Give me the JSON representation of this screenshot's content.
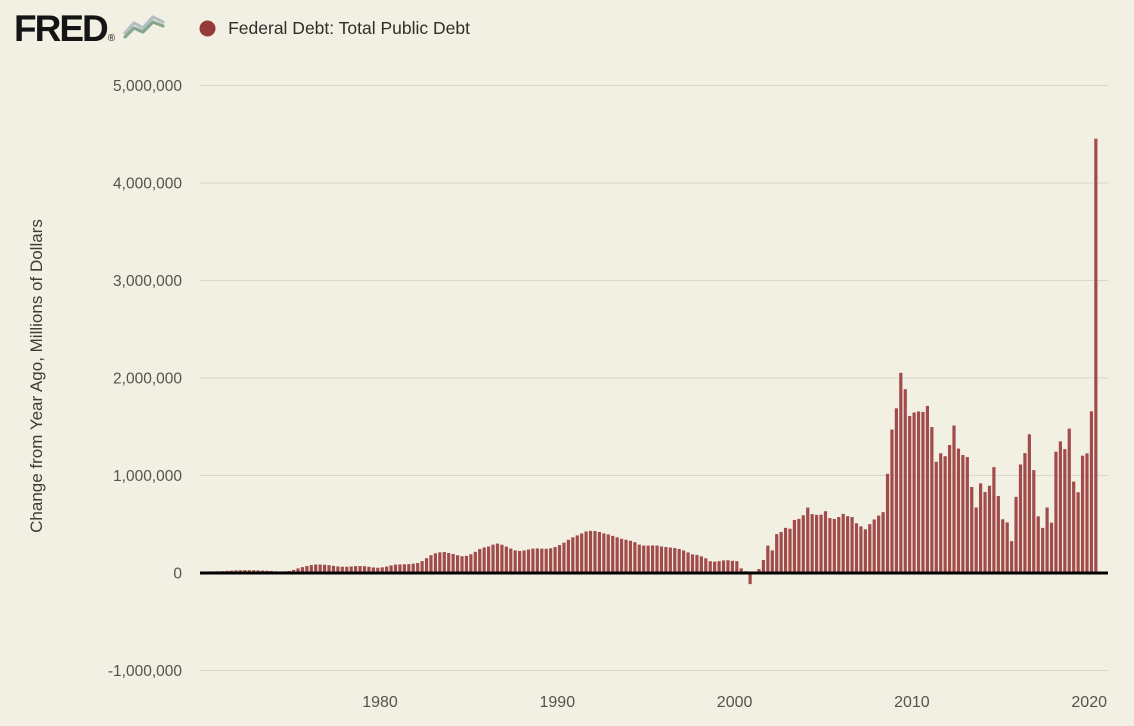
{
  "page": {
    "background": "#f2efe3"
  },
  "header": {
    "logo_text": "FRED",
    "registered_mark": "®",
    "legend_label": "Federal Debt: Total Public Debt",
    "legend_dot_color": "#943a38"
  },
  "chart_data": {
    "type": "bar",
    "title": "Federal Debt: Total Public Debt",
    "xlabel": "",
    "ylabel": "Change from Year Ago, Millions of Dollars",
    "units": "Millions of Dollars",
    "frequency": "quarterly",
    "start_year": 1970,
    "start_quarter": 1,
    "end_label": "2020 Q2",
    "legend": [
      "Federal Debt: Total Public Debt"
    ],
    "grid": true,
    "legend_position": "top-left",
    "bar_color": "#a14c4a",
    "zero_line_color": "#000000",
    "grid_color": "#dad7c8",
    "tick_color": "#54544a",
    "x_ticks": [
      1980,
      1990,
      2000,
      2010,
      2020
    ],
    "y_ticks": [
      -1000000,
      0,
      1000000,
      2000000,
      3000000,
      4000000,
      5000000
    ],
    "xlim": [
      1969.8,
      2021.1
    ],
    "ylim": [
      -1350000,
      5150000
    ],
    "values": [
      15000,
      16000,
      17000,
      17500,
      19000,
      22000,
      25000,
      27000,
      28000,
      29000,
      29000,
      28000,
      27000,
      25000,
      23000,
      21000,
      18000,
      16000,
      17000,
      21000,
      32000,
      47000,
      60000,
      72000,
      82000,
      87000,
      87000,
      85000,
      80000,
      73000,
      67000,
      64000,
      64000,
      67000,
      71000,
      72000,
      70000,
      64000,
      57000,
      54000,
      58000,
      66000,
      78000,
      86000,
      88000,
      89000,
      91000,
      96000,
      102000,
      122000,
      152000,
      182000,
      202000,
      212000,
      215000,
      205000,
      195000,
      182000,
      172000,
      176000,
      192000,
      217000,
      246000,
      262000,
      272000,
      291000,
      302000,
      290000,
      271000,
      251000,
      232000,
      226000,
      231000,
      241000,
      250000,
      252000,
      250000,
      249000,
      253000,
      266000,
      286000,
      311000,
      341000,
      366000,
      386000,
      406000,
      426000,
      432000,
      430000,
      421000,
      406000,
      396000,
      381000,
      366000,
      351000,
      341000,
      331000,
      316000,
      291000,
      281000,
      281000,
      283000,
      281000,
      272000,
      266000,
      261000,
      256000,
      246000,
      231000,
      211000,
      191000,
      186000,
      171000,
      151000,
      121000,
      116000,
      121000,
      129000,
      131000,
      125000,
      121000,
      47000,
      18000,
      -114000,
      1000,
      41000,
      133000,
      281000,
      232000,
      399000,
      421000,
      463000,
      454000,
      544000,
      555000,
      592000,
      671000,
      604000,
      596000,
      598000,
      634000,
      563000,
      554000,
      574000,
      606000,
      583000,
      574000,
      510000,
      478000,
      448000,
      501000,
      549000,
      589000,
      624000,
      1017000,
      1471000,
      1689000,
      2053000,
      1885000,
      1611000,
      1646000,
      1657000,
      1652000,
      1714000,
      1497000,
      1141000,
      1228000,
      1198000,
      1312000,
      1513000,
      1276000,
      1210000,
      1189000,
      882000,
      672000,
      919000,
      830000,
      895000,
      1086000,
      789000,
      551000,
      519000,
      327000,
      781000,
      1113000,
      1230000,
      1422000,
      1055000,
      581000,
      463000,
      672000,
      516000,
      1244000,
      1350000,
      1271000,
      1481000,
      938000,
      828000,
      1203000,
      1227000,
      1659000,
      4454000
    ]
  }
}
